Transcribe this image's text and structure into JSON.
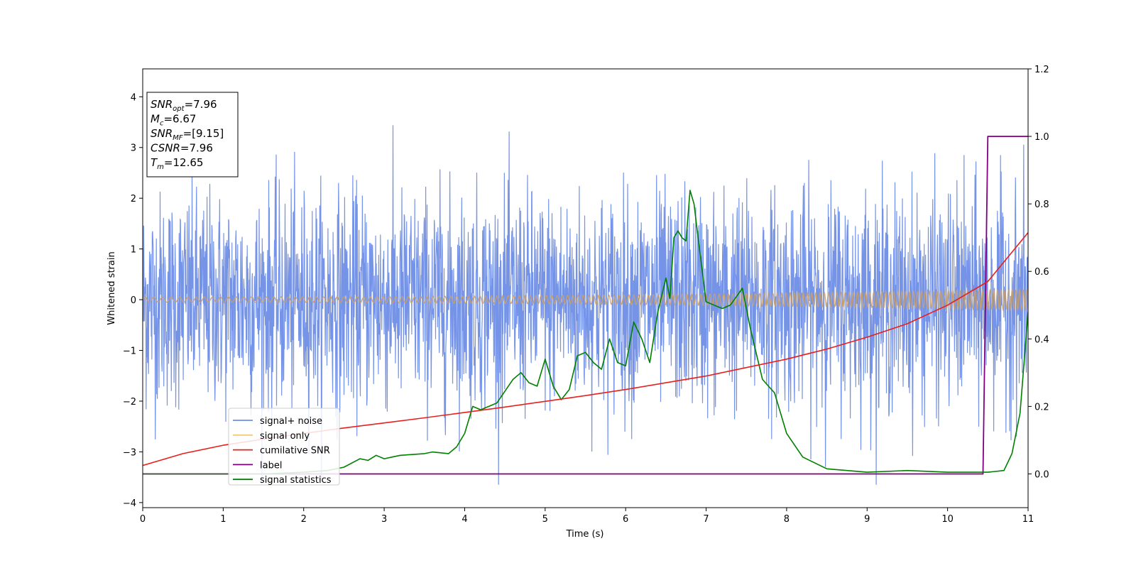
{
  "chart_data": {
    "type": "line",
    "xlabel": "Time (s)",
    "ylabel": "Whitened strain",
    "xlim": [
      0,
      11
    ],
    "ylim_left": [
      -4.1,
      4.55
    ],
    "ylim_right": [
      -0.1,
      1.2
    ],
    "x_ticks": [
      "0",
      "1",
      "2",
      "3",
      "4",
      "5",
      "6",
      "7",
      "8",
      "9",
      "10",
      "11"
    ],
    "y_ticks_left": [
      "−4",
      "−3",
      "−2",
      "−1",
      "0",
      "1",
      "2",
      "3",
      "4"
    ],
    "y_ticks_left_values": [
      -4,
      -3,
      -2,
      -1,
      0,
      1,
      2,
      3,
      4
    ],
    "y_ticks_right": [
      "0.0",
      "0.2",
      "0.4",
      "0.6",
      "0.8",
      "1.0",
      "1.2"
    ],
    "y_ticks_right_values": [
      0.0,
      0.2,
      0.4,
      0.6,
      0.8,
      1.0,
      1.2
    ],
    "legend_position": "lower-left",
    "series": [
      {
        "name": "signal+ noise",
        "color": "#6f8ee6",
        "axis": "left",
        "kind": "noise",
        "sigma": 1.05,
        "amplitude_range": [
          -3.65,
          4.15
        ]
      },
      {
        "name": "signal only",
        "color": "#f5c97a",
        "axis": "left",
        "kind": "chirp",
        "amplitude_start": 0.05,
        "amplitude_end": 0.2
      },
      {
        "name": "cumilative SNR",
        "color": "#e8201d",
        "axis": "right",
        "x": [
          0,
          0.5,
          1,
          1.5,
          2,
          2.5,
          3,
          3.5,
          4,
          4.5,
          5,
          5.5,
          6,
          6.5,
          7,
          7.5,
          8,
          8.5,
          9,
          9.5,
          10,
          10.5,
          11
        ],
        "y": [
          0.025,
          0.06,
          0.085,
          0.103,
          0.12,
          0.136,
          0.151,
          0.166,
          0.182,
          0.198,
          0.215,
          0.232,
          0.25,
          0.27,
          0.29,
          0.315,
          0.34,
          0.37,
          0.405,
          0.445,
          0.5,
          0.57,
          0.715
        ]
      },
      {
        "name": "label",
        "color": "#800080",
        "axis": "right",
        "x": [
          0,
          10.44,
          10.5,
          11
        ],
        "y": [
          0.0,
          0.0,
          1.0,
          1.0
        ]
      },
      {
        "name": "signal statistics",
        "color": "#008000",
        "axis": "right",
        "x": [
          0,
          0.5,
          1,
          1.5,
          2,
          2.3,
          2.5,
          2.7,
          2.8,
          2.9,
          3.0,
          3.1,
          3.2,
          3.5,
          3.6,
          3.8,
          3.9,
          4.0,
          4.1,
          4.2,
          4.4,
          4.6,
          4.7,
          4.8,
          4.9,
          5.0,
          5.1,
          5.2,
          5.3,
          5.4,
          5.5,
          5.6,
          5.7,
          5.8,
          5.9,
          6.0,
          6.1,
          6.2,
          6.3,
          6.4,
          6.5,
          6.55,
          6.6,
          6.65,
          6.7,
          6.75,
          6.8,
          6.85,
          6.9,
          7.0,
          7.1,
          7.2,
          7.3,
          7.45,
          7.55,
          7.7,
          7.85,
          8.0,
          8.2,
          8.5,
          9.0,
          9.5,
          10.0,
          10.5,
          10.7,
          10.8,
          10.9,
          11.0
        ],
        "y": [
          0.0,
          0.0,
          0.0,
          0.0,
          0.005,
          0.01,
          0.02,
          0.045,
          0.04,
          0.055,
          0.045,
          0.05,
          0.055,
          0.06,
          0.065,
          0.06,
          0.08,
          0.12,
          0.2,
          0.19,
          0.21,
          0.28,
          0.3,
          0.27,
          0.26,
          0.34,
          0.26,
          0.22,
          0.25,
          0.35,
          0.36,
          0.33,
          0.31,
          0.4,
          0.33,
          0.32,
          0.45,
          0.4,
          0.33,
          0.48,
          0.58,
          0.52,
          0.7,
          0.72,
          0.7,
          0.69,
          0.84,
          0.8,
          0.7,
          0.51,
          0.5,
          0.49,
          0.5,
          0.55,
          0.43,
          0.28,
          0.24,
          0.12,
          0.05,
          0.015,
          0.005,
          0.01,
          0.005,
          0.005,
          0.01,
          0.06,
          0.18,
          0.48
        ]
      }
    ],
    "annotation_box": {
      "lines": [
        {
          "main": "SNR",
          "sub": "opt",
          "value": "=7.96"
        },
        {
          "main": "M",
          "sub": "c",
          "value": "=6.67"
        },
        {
          "main": "SNR",
          "sub": "MF",
          "value": "=[9.15]"
        },
        {
          "main": "CSNR",
          "sub": "",
          "value": "=7.96"
        },
        {
          "main": "T",
          "sub": "m",
          "value": "=12.65"
        }
      ]
    }
  }
}
